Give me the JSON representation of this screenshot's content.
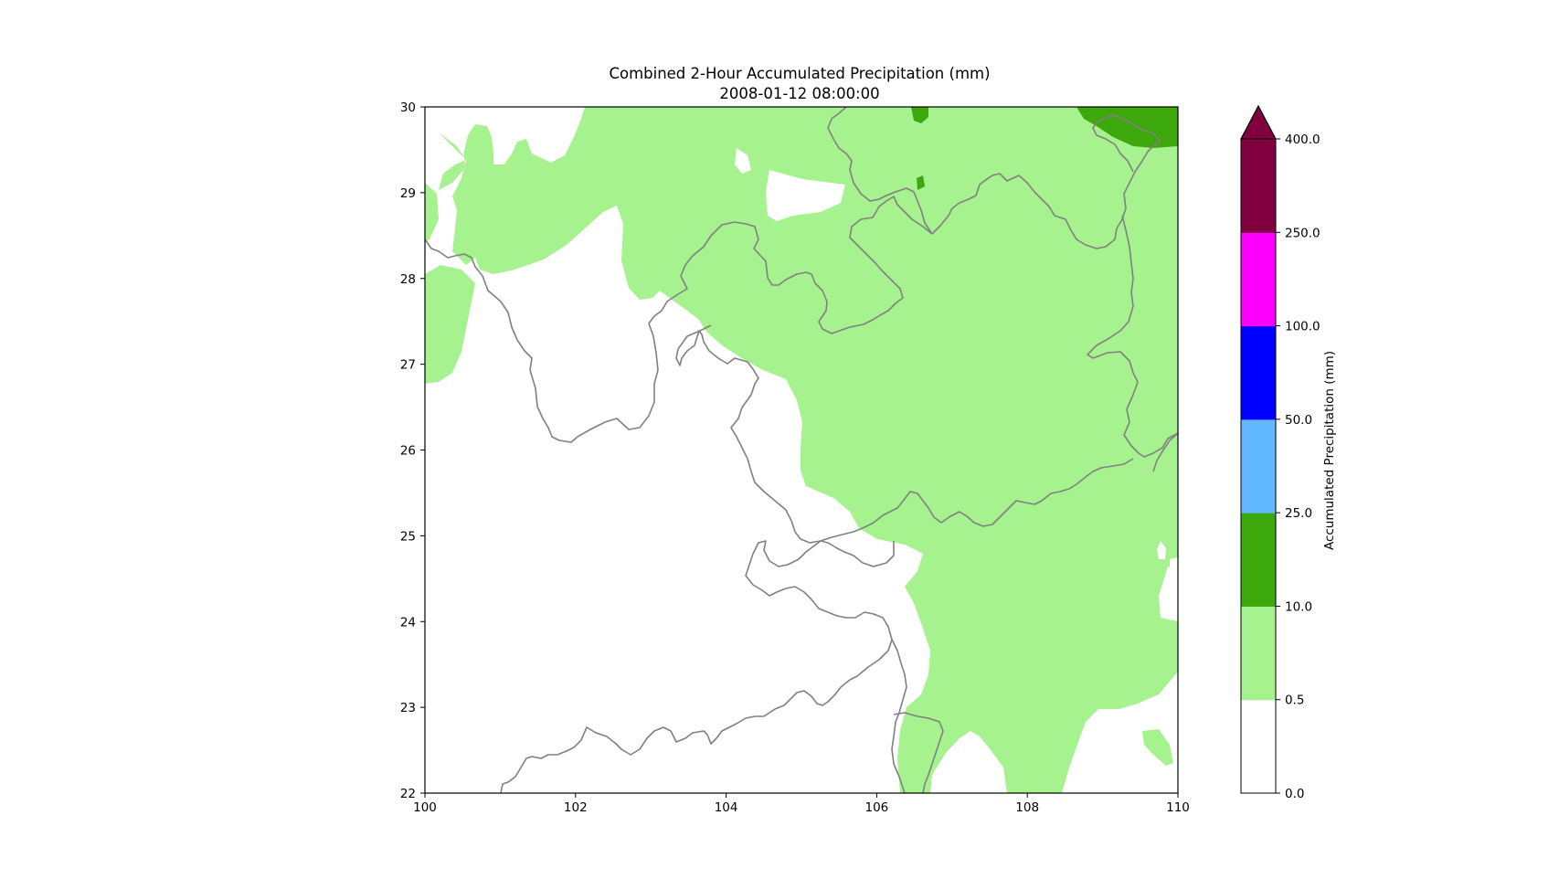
{
  "title": {
    "line1": "Combined 2-Hour Accumulated Precipitation (mm)",
    "line2": "2008-01-12 08:00:00"
  },
  "map": {
    "x_ticks": [
      "100",
      "102",
      "104",
      "106",
      "108",
      "110"
    ],
    "y_ticks": [
      "22",
      "23",
      "24",
      "25",
      "26",
      "27",
      "28",
      "29",
      "30"
    ],
    "lon_range": [
      100,
      110
    ],
    "lat_range": [
      22,
      30
    ],
    "border_color": "#808080",
    "frame_color": "#000000"
  },
  "colorbar": {
    "label": "Accumulated Precipitation (mm)",
    "extend": "max",
    "levels": [
      {
        "lower": "0.0",
        "color": "#ffffff"
      },
      {
        "lower": "0.5",
        "color": "#a6f28f"
      },
      {
        "lower": "10.0",
        "color": "#3da80c"
      },
      {
        "lower": "25.0",
        "color": "#61b8ff"
      },
      {
        "lower": "50.0",
        "color": "#0000ff"
      },
      {
        "lower": "100.0",
        "color": "#fa00fa"
      },
      {
        "lower": "250.0",
        "color": "#800040"
      }
    ],
    "top_label": "400.0",
    "extend_color": "#800040"
  }
}
